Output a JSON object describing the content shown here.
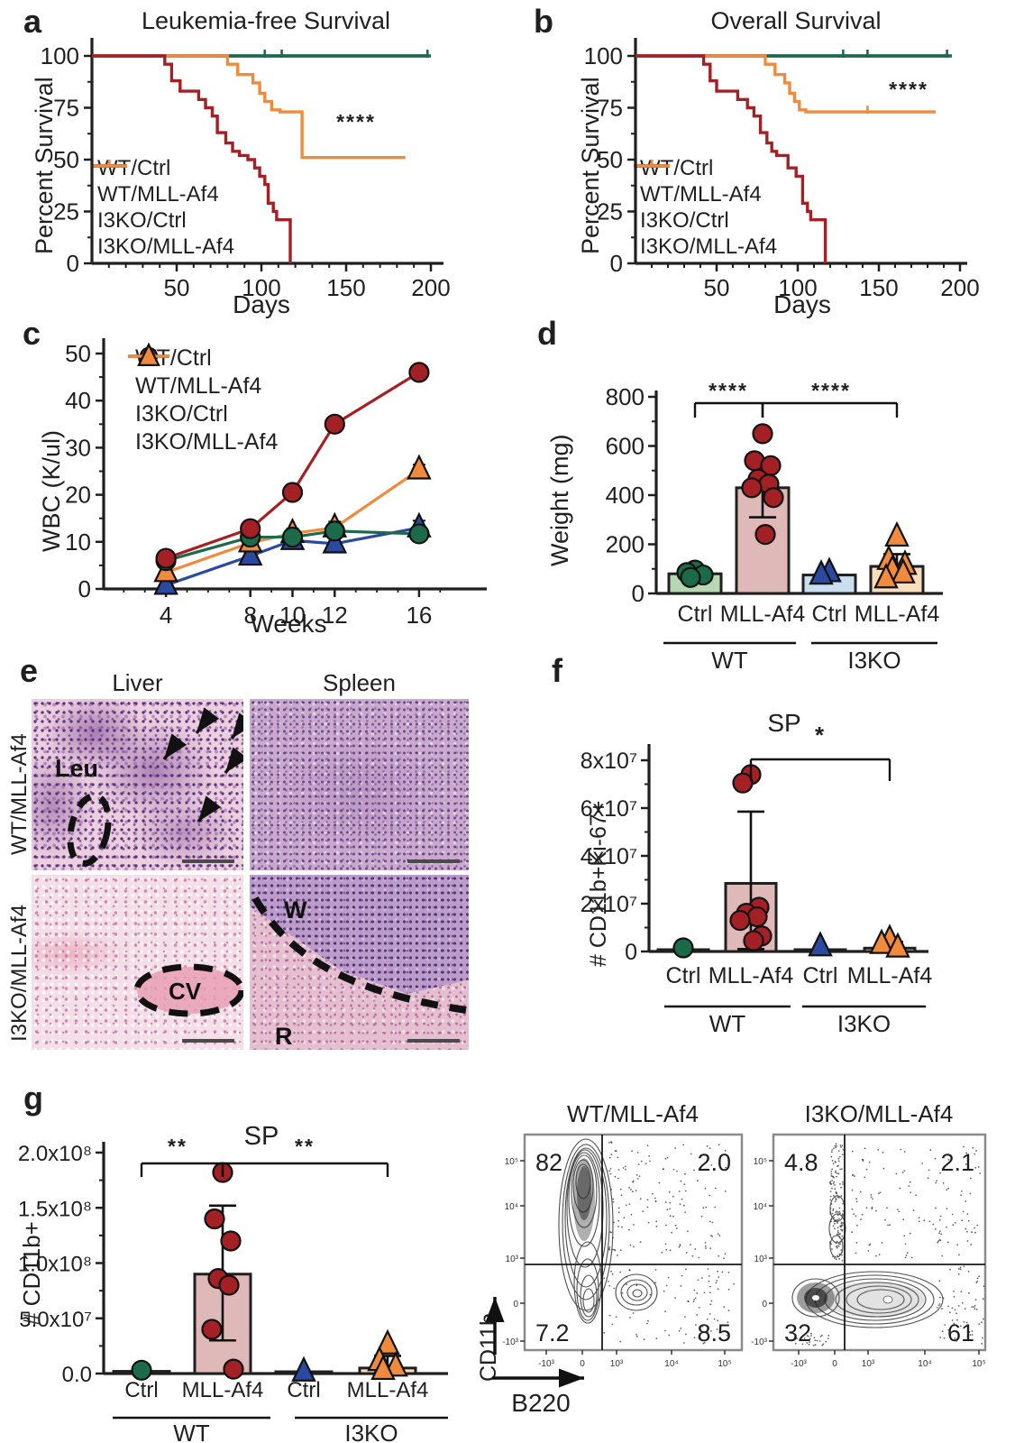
{
  "panel_letters": {
    "a": "a",
    "b": "b",
    "c": "c",
    "d": "d",
    "e": "e",
    "f": "f",
    "g": "g"
  },
  "colors": {
    "green": "#1b6a4a",
    "red": "#a32125",
    "blue": "#2b4a9f",
    "orange": "#f08a3c",
    "green_fill": "#b7d6b2",
    "red_fill": "#dfb8b8",
    "blue_fill": "#c9dff0",
    "orange_fill": "#f8debc",
    "axis": "#1f1f1f"
  },
  "chart_data": [
    {
      "id": "a",
      "type": "line",
      "subtype": "kaplan_meier",
      "title": "Leukemia-free Survival",
      "xlabel": "Days",
      "ylabel": "Percent Survival",
      "xlim": [
        0,
        205
      ],
      "ylim": [
        0,
        100
      ],
      "xticks": [
        50,
        100,
        150,
        200
      ],
      "yticks": [
        0,
        25,
        50,
        75,
        100
      ],
      "significance": "****",
      "legend": [
        "WT/Ctrl",
        "WT/MLL-Af4",
        "I3KO/Ctrl",
        "I3KO/MLL-Af4"
      ],
      "series": [
        {
          "name": "WT/Ctrl",
          "color": "green",
          "steps": [
            [
              0,
              100
            ],
            [
              200,
              100
            ]
          ],
          "censors": [
            102,
            112,
            198
          ]
        },
        {
          "name": "I3KO/Ctrl",
          "color": "blue",
          "steps": [
            [
              0,
              100
            ],
            [
              198,
              100
            ]
          ]
        },
        {
          "name": "WT/MLL-Af4",
          "color": "red",
          "steps": [
            [
              0,
              100
            ],
            [
              43,
              100
            ],
            [
              43,
              96
            ],
            [
              47,
              96
            ],
            [
              47,
              88
            ],
            [
              52,
              88
            ],
            [
              52,
              83
            ],
            [
              63,
              83
            ],
            [
              63,
              79
            ],
            [
              67,
              79
            ],
            [
              67,
              75
            ],
            [
              71,
              75
            ],
            [
              71,
              71
            ],
            [
              74,
              71
            ],
            [
              74,
              63
            ],
            [
              79,
              63
            ],
            [
              79,
              58
            ],
            [
              83,
              58
            ],
            [
              83,
              54
            ],
            [
              87,
              54
            ],
            [
              87,
              52
            ],
            [
              92,
              52
            ],
            [
              92,
              50
            ],
            [
              96,
              50
            ],
            [
              96,
              46
            ],
            [
              99,
              46
            ],
            [
              99,
              42
            ],
            [
              102,
              42
            ],
            [
              102,
              38
            ],
            [
              104,
              38
            ],
            [
              104,
              29
            ],
            [
              107,
              29
            ],
            [
              107,
              25
            ],
            [
              109,
              25
            ],
            [
              109,
              21
            ],
            [
              117,
              21
            ],
            [
              117,
              0
            ]
          ]
        },
        {
          "name": "I3KO/MLL-Af4",
          "color": "orange",
          "steps": [
            [
              0,
              100
            ],
            [
              80,
              100
            ],
            [
              80,
              96
            ],
            [
              86,
              96
            ],
            [
              86,
              91
            ],
            [
              95,
              91
            ],
            [
              95,
              87
            ],
            [
              99,
              87
            ],
            [
              99,
              82
            ],
            [
              102,
              82
            ],
            [
              102,
              78
            ],
            [
              106,
              78
            ],
            [
              106,
              74
            ],
            [
              111,
              74
            ],
            [
              111,
              73
            ],
            [
              124,
              73
            ],
            [
              124,
              51
            ],
            [
              185,
              51
            ]
          ]
        }
      ]
    },
    {
      "id": "b",
      "type": "line",
      "subtype": "kaplan_meier",
      "title": "Overall Survival",
      "xlabel": "Days",
      "ylabel": "Percent Survival",
      "xlim": [
        0,
        205
      ],
      "ylim": [
        0,
        100
      ],
      "xticks": [
        50,
        100,
        150,
        200
      ],
      "yticks": [
        0,
        25,
        50,
        75,
        100
      ],
      "significance": "****",
      "legend": [
        "WT/Ctrl",
        "WT/MLL-Af4",
        "I3KO/Ctrl",
        "I3KO/MLL-Af4"
      ],
      "series": [
        {
          "name": "WT/Ctrl",
          "color": "green",
          "steps": [
            [
              0,
              100
            ],
            [
              195,
              100
            ]
          ],
          "censors": [
            128,
            143,
            192
          ]
        },
        {
          "name": "I3KO/Ctrl",
          "color": "blue",
          "steps": [
            [
              0,
              100
            ],
            [
              193,
              100
            ]
          ]
        },
        {
          "name": "WT/MLL-Af4",
          "color": "red",
          "steps": [
            [
              0,
              100
            ],
            [
              42,
              100
            ],
            [
              42,
              96
            ],
            [
              46,
              96
            ],
            [
              46,
              88
            ],
            [
              50,
              88
            ],
            [
              50,
              83
            ],
            [
              63,
              83
            ],
            [
              63,
              79
            ],
            [
              69,
              79
            ],
            [
              69,
              75
            ],
            [
              73,
              75
            ],
            [
              73,
              71
            ],
            [
              77,
              71
            ],
            [
              77,
              63
            ],
            [
              81,
              63
            ],
            [
              81,
              58
            ],
            [
              84,
              58
            ],
            [
              84,
              54
            ],
            [
              87,
              54
            ],
            [
              87,
              52
            ],
            [
              94,
              52
            ],
            [
              94,
              46
            ],
            [
              99,
              46
            ],
            [
              99,
              42
            ],
            [
              103,
              42
            ],
            [
              103,
              29
            ],
            [
              106,
              29
            ],
            [
              106,
              25
            ],
            [
              108,
              25
            ],
            [
              108,
              21
            ],
            [
              117,
              21
            ],
            [
              117,
              0
            ]
          ]
        },
        {
          "name": "I3KO/MLL-Af4",
          "color": "orange",
          "steps": [
            [
              0,
              100
            ],
            [
              80,
              100
            ],
            [
              80,
              96
            ],
            [
              86,
              96
            ],
            [
              86,
              91
            ],
            [
              92,
              91
            ],
            [
              92,
              87
            ],
            [
              95,
              87
            ],
            [
              95,
              82
            ],
            [
              98,
              82
            ],
            [
              98,
              78
            ],
            [
              101,
              78
            ],
            [
              101,
              74
            ],
            [
              105,
              74
            ],
            [
              105,
              73
            ],
            [
              185,
              73
            ]
          ],
          "censors": [
            143
          ]
        }
      ]
    },
    {
      "id": "c",
      "type": "line",
      "title": "",
      "xlabel": "Weeks",
      "ylabel": "WBC (K/ul)",
      "x": [
        4,
        8,
        10,
        12,
        16
      ],
      "yticks": [
        0,
        10,
        20,
        30,
        40,
        50
      ],
      "ylim": [
        0,
        50
      ],
      "legend": [
        "WT/Ctrl",
        "WT/MLL-Af4",
        "I3KO/Ctrl",
        "I3KO/MLL-Af4"
      ],
      "series": [
        {
          "name": "WT/Ctrl",
          "color": "green",
          "marker": "circle",
          "values": [
            6,
            11,
            11,
            12.3,
            11.7
          ],
          "err": [
            0.5,
            0.8,
            0.9,
            1.4,
            1.0
          ]
        },
        {
          "name": "WT/MLL-Af4",
          "color": "red",
          "marker": "circle",
          "values": [
            6.5,
            12.8,
            20.5,
            35,
            46
          ],
          "err": [
            0.5,
            1.0,
            1.2,
            1.5,
            1.2
          ]
        },
        {
          "name": "I3KO/Ctrl",
          "color": "blue",
          "marker": "triangle",
          "values": [
            0.8,
            7,
            10.3,
            9.6,
            13
          ],
          "err": [
            0.3,
            0.8,
            1.0,
            1.2,
            1.5
          ]
        },
        {
          "name": "I3KO/MLL-Af4",
          "color": "orange",
          "marker": "triangle",
          "values": [
            3.5,
            9.8,
            11.8,
            13,
            25.3
          ],
          "err": [
            0.4,
            0.9,
            1.0,
            1.3,
            1.1
          ]
        }
      ]
    },
    {
      "id": "d",
      "type": "bar",
      "ylabel": "Weight (mg)",
      "yticks": [
        0,
        200,
        400,
        600,
        800
      ],
      "ylim": [
        0,
        800
      ],
      "categories": [
        "Ctrl",
        "MLL-Af4",
        "Ctrl",
        "MLL-Af4"
      ],
      "groups": [
        "WT",
        "I3KO"
      ],
      "bars": [
        {
          "category": "Ctrl",
          "group": "WT",
          "value": 80,
          "fill": "green_fill",
          "marker": "circle",
          "point_color": "green",
          "points": [
            95,
            85,
            75,
            65
          ]
        },
        {
          "category": "MLL-Af4",
          "group": "WT",
          "value": 430,
          "fill": "red_fill",
          "marker": "circle",
          "point_color": "red",
          "points": [
            650,
            540,
            520,
            465,
            445,
            430,
            390,
            240
          ],
          "whisker": [
            310,
            550
          ]
        },
        {
          "category": "Ctrl",
          "group": "I3KO",
          "value": 75,
          "fill": "blue_fill",
          "marker": "triangle",
          "point_color": "blue",
          "points": [
            85,
            75
          ]
        },
        {
          "category": "MLL-Af4",
          "group": "I3KO",
          "value": 110,
          "fill": "orange_fill",
          "marker": "triangle",
          "point_color": "orange",
          "points": [
            230,
            135,
            115,
            95,
            80,
            60
          ],
          "whisker": [
            55,
            160
          ]
        }
      ],
      "sig": [
        {
          "a": 0,
          "b": 1,
          "label": "****"
        },
        {
          "a": 1,
          "b": 3,
          "label": "****"
        }
      ]
    },
    {
      "id": "f",
      "type": "bar",
      "title": "SP",
      "ylabel": "# CD11b+Ki-67+",
      "unit": "1e7",
      "ytick_vals": [
        0,
        2,
        4,
        6,
        8
      ],
      "ytick_labels": [
        "0",
        "2x10⁷",
        "4x10⁷",
        "6x10⁷",
        "8x10⁷"
      ],
      "categories": [
        "Ctrl",
        "MLL-Af4",
        "Ctrl",
        "MLL-Af4"
      ],
      "groups": [
        "WT",
        "I3KO"
      ],
      "bars": [
        {
          "category": "Ctrl",
          "group": "WT",
          "value": 0.07,
          "fill": "green_fill",
          "marker": "circle",
          "point_color": "green",
          "points": [
            0.15
          ]
        },
        {
          "category": "MLL-Af4",
          "group": "WT",
          "value": 2.85,
          "fill": "red_fill",
          "marker": "circle",
          "point_color": "red",
          "points": [
            7.4,
            7.05,
            1.85,
            1.6,
            1.45,
            1.3,
            0.65,
            0.45
          ],
          "whisker": [
            0.1,
            5.85
          ]
        },
        {
          "category": "Ctrl",
          "group": "I3KO",
          "value": 0.07,
          "fill": "blue_fill",
          "marker": "triangle",
          "point_color": "blue",
          "points": [
            0.2
          ]
        },
        {
          "category": "MLL-Af4",
          "group": "I3KO",
          "value": 0.14,
          "fill": "orange_fill",
          "marker": "triangle",
          "point_color": "orange",
          "points": [
            0.5,
            0.3,
            0.15
          ],
          "whisker": [
            0.05,
            0.4
          ]
        }
      ],
      "sig": [
        {
          "a": 1,
          "b": 3,
          "label": "*"
        }
      ]
    },
    {
      "id": "g_bar",
      "type": "bar",
      "title": "SP",
      "ylabel": "# CD11b+",
      "unit": "1e7",
      "ytick_vals": [
        0,
        5,
        10,
        15,
        20
      ],
      "ytick_labels": [
        "0.0",
        "5.0x10⁷",
        "1.0x10⁸",
        "1.5x10⁸",
        "2.0x10⁸"
      ],
      "categories": [
        "Ctrl",
        "MLL-Af4",
        "Ctrl",
        "MLL-Af4"
      ],
      "groups": [
        "WT",
        "I3KO"
      ],
      "bars": [
        {
          "category": "Ctrl",
          "group": "WT",
          "value": 0.2,
          "fill": "green_fill",
          "marker": "circle",
          "point_color": "green",
          "points": [
            0.3
          ]
        },
        {
          "category": "MLL-Af4",
          "group": "WT",
          "value": 9.0,
          "fill": "red_fill",
          "marker": "circle",
          "point_color": "red",
          "points": [
            18.2,
            14,
            12,
            8.6,
            8,
            4,
            0.4
          ],
          "whisker": [
            3,
            15.2
          ]
        },
        {
          "category": "Ctrl",
          "group": "I3KO",
          "value": 0.12,
          "fill": "blue_fill",
          "marker": "triangle",
          "point_color": "blue",
          "points": [
            0.15
          ]
        },
        {
          "category": "MLL-Af4",
          "group": "I3KO",
          "value": 0.5,
          "fill": "orange_fill",
          "marker": "triangle",
          "point_color": "orange",
          "points": [
            2.6,
            1.1,
            0.6,
            0.3
          ],
          "whisker": [
            0.1,
            1.6
          ]
        }
      ],
      "sig": [
        {
          "a": 0,
          "b": 1,
          "label": "**"
        },
        {
          "a": 1,
          "b": 3,
          "label": "**"
        }
      ]
    },
    {
      "id": "flow_wt",
      "type": "contour",
      "title": "WT/MLL-Af4",
      "xlabel": "B220",
      "ylabel": "CD11b",
      "quadrants": {
        "top_left": "82",
        "top_right": "2.0",
        "bottom_left": "7.2",
        "bottom_right": "8.5"
      },
      "xtick_labels": [
        "-10³",
        "0",
        "10³",
        "10⁴",
        "10⁵"
      ],
      "ytick_labels": [
        "10⁵",
        "10⁴",
        "10³",
        "0",
        "-10³"
      ]
    },
    {
      "id": "flow_i3ko",
      "type": "contour",
      "title": "I3KO/MLL-Af4",
      "xlabel": "B220",
      "ylabel": "CD11b",
      "quadrants": {
        "top_left": "4.8",
        "top_right": "2.1",
        "bottom_left": "32",
        "bottom_right": "61"
      },
      "xtick_labels": [
        "-10³",
        "0",
        "10³",
        "10⁴",
        "10⁵"
      ],
      "ytick_labels": [
        "10⁵",
        "10⁴",
        "10³",
        "0",
        "-10³"
      ]
    }
  ],
  "panel_e": {
    "columns": [
      "Liver",
      "Spleen"
    ],
    "rows": [
      "WT/MLL-Af4",
      "I3KO/MLL-Af4"
    ],
    "annotations": {
      "leukemia": "Leu",
      "central_vein": "CV",
      "white_pulp": "W",
      "red_pulp": "R"
    }
  }
}
